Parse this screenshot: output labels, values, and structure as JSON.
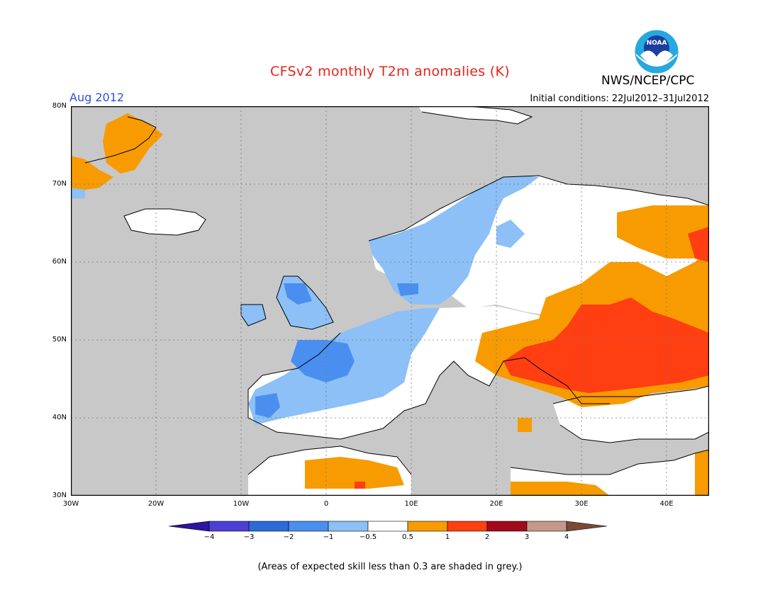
{
  "header": {
    "title": "CFSv2 monthly T2m anomalies (K)",
    "month": "Aug 2012",
    "initial_conditions": "Initial conditions: 22Jul2012–31Jul2012",
    "agency": "NWS/NCEP/CPC",
    "logo_text": "NOAA"
  },
  "axes": {
    "lat_labels": [
      "80N",
      "70N",
      "60N",
      "50N",
      "40N",
      "30N"
    ],
    "lon_labels": [
      "30W",
      "20W",
      "10W",
      "0",
      "10E",
      "20E",
      "30E",
      "40E"
    ]
  },
  "legend": {
    "ticks": [
      "−4",
      "−3",
      "−2",
      "−1",
      "−0.5",
      "0.5",
      "1",
      "2",
      "3",
      "4"
    ],
    "colors": [
      "#2e14a0",
      "#4d3fd6",
      "#2b6ad8",
      "#4a8ff0",
      "#8cc0f6",
      "#ffffff",
      "#f79b00",
      "#ff3e12",
      "#a4091a",
      "#c4988a",
      "#7a4a36"
    ]
  },
  "colors": {
    "ocean_grey": "#c8c8c8",
    "land_white": "#ffffff",
    "title_red": "#e8231a",
    "month_blue": "#2b50e6"
  },
  "note": "(Areas of expected skill less than 0.3 are shaded in grey.)"
}
